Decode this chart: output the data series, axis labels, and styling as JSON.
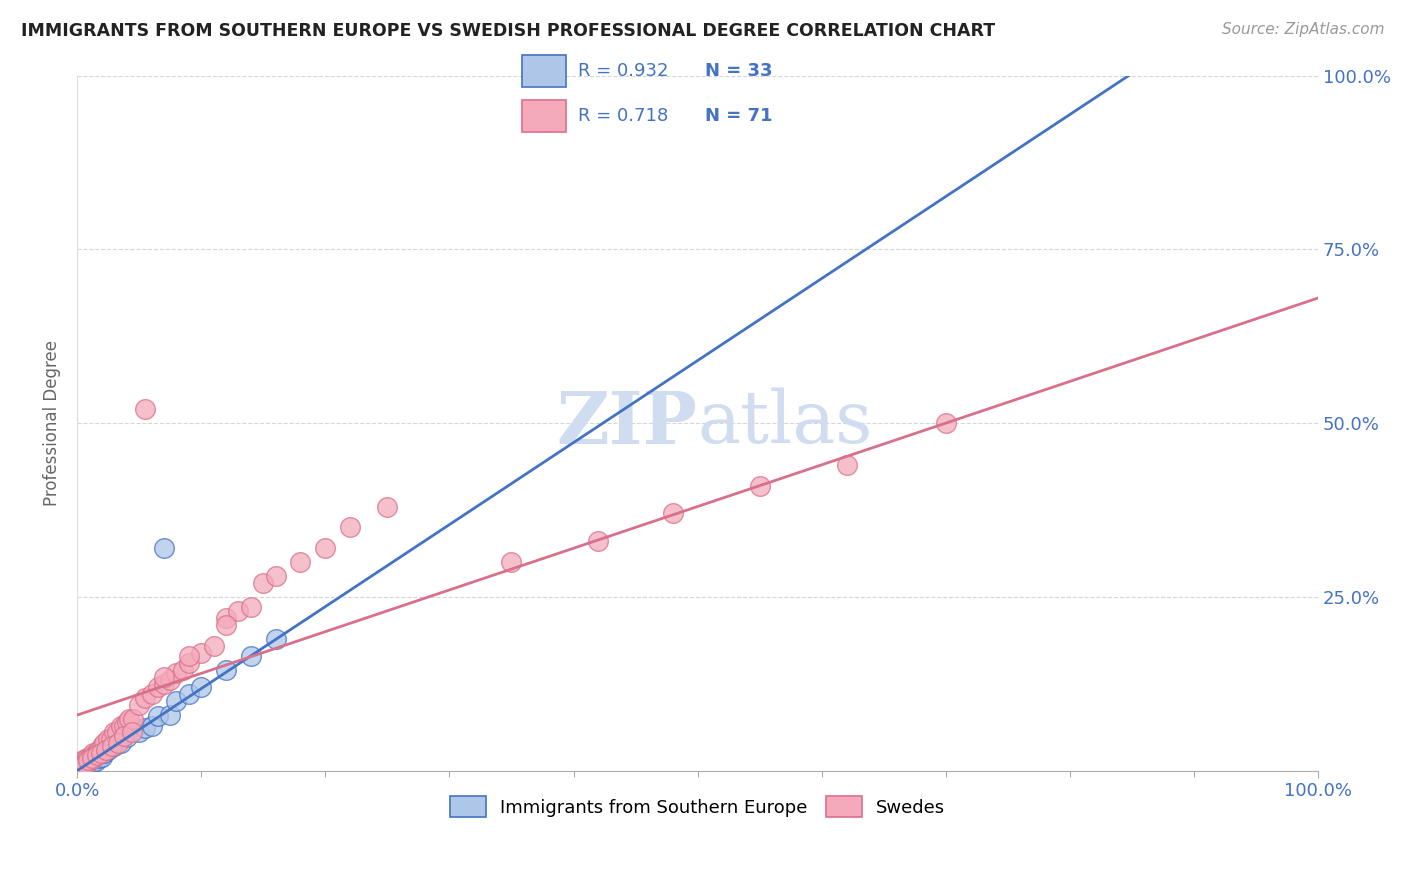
{
  "title": "IMMIGRANTS FROM SOUTHERN EUROPE VS SWEDISH PROFESSIONAL DEGREE CORRELATION CHART",
  "source": "Source: ZipAtlas.com",
  "ylabel": "Professional Degree",
  "blue_label": "Immigrants from Southern Europe",
  "pink_label": "Swedes",
  "blue_R": "0.932",
  "blue_N": "33",
  "pink_R": "0.718",
  "pink_N": "71",
  "blue_color": "#AEC6E8",
  "pink_color": "#F4AABB",
  "blue_line_color": "#4472C4",
  "pink_line_color": "#D9708A",
  "watermark_color": "#D0DCF0",
  "title_color": "#222222",
  "axis_color": "#4472C4",
  "grid_color": "#CCCCCC",
  "blue_line_slope": 1.18,
  "blue_line_intercept": 0.0,
  "pink_line_slope": 0.6,
  "pink_line_intercept": 0.08,
  "blue_x": [
    0.002,
    0.004,
    0.005,
    0.006,
    0.007,
    0.008,
    0.009,
    0.01,
    0.01,
    0.012,
    0.013,
    0.015,
    0.015,
    0.018,
    0.02,
    0.02,
    0.022,
    0.025,
    0.03,
    0.035,
    0.04,
    0.05,
    0.055,
    0.06,
    0.065,
    0.07,
    0.075,
    0.08,
    0.09,
    0.1,
    0.12,
    0.14,
    0.16
  ],
  "blue_y": [
    0.005,
    0.008,
    0.004,
    0.01,
    0.008,
    0.012,
    0.01,
    0.015,
    0.008,
    0.015,
    0.012,
    0.018,
    0.014,
    0.018,
    0.028,
    0.02,
    0.025,
    0.03,
    0.035,
    0.04,
    0.048,
    0.055,
    0.062,
    0.065,
    0.078,
    0.32,
    0.08,
    0.1,
    0.11,
    0.12,
    0.145,
    0.165,
    0.19
  ],
  "pink_x": [
    0.001,
    0.002,
    0.003,
    0.004,
    0.005,
    0.005,
    0.006,
    0.007,
    0.008,
    0.009,
    0.01,
    0.01,
    0.011,
    0.012,
    0.013,
    0.014,
    0.015,
    0.016,
    0.018,
    0.02,
    0.022,
    0.025,
    0.027,
    0.03,
    0.032,
    0.035,
    0.038,
    0.04,
    0.042,
    0.045,
    0.05,
    0.055,
    0.06,
    0.065,
    0.07,
    0.075,
    0.08,
    0.085,
    0.09,
    0.1,
    0.11,
    0.12,
    0.13,
    0.14,
    0.15,
    0.16,
    0.18,
    0.2,
    0.22,
    0.25,
    0.003,
    0.006,
    0.009,
    0.012,
    0.016,
    0.019,
    0.023,
    0.028,
    0.033,
    0.038,
    0.044,
    0.055,
    0.07,
    0.09,
    0.12,
    0.35,
    0.42,
    0.48,
    0.55,
    0.62,
    0.7
  ],
  "pink_y": [
    0.005,
    0.008,
    0.01,
    0.012,
    0.015,
    0.01,
    0.012,
    0.016,
    0.018,
    0.012,
    0.02,
    0.015,
    0.02,
    0.022,
    0.025,
    0.02,
    0.025,
    0.025,
    0.03,
    0.035,
    0.04,
    0.045,
    0.045,
    0.055,
    0.055,
    0.065,
    0.065,
    0.07,
    0.075,
    0.075,
    0.095,
    0.105,
    0.11,
    0.12,
    0.125,
    0.13,
    0.14,
    0.145,
    0.155,
    0.17,
    0.18,
    0.22,
    0.23,
    0.235,
    0.27,
    0.28,
    0.3,
    0.32,
    0.35,
    0.38,
    0.006,
    0.01,
    0.015,
    0.018,
    0.022,
    0.025,
    0.03,
    0.035,
    0.04,
    0.05,
    0.055,
    0.52,
    0.135,
    0.165,
    0.21,
    0.3,
    0.33,
    0.37,
    0.41,
    0.44,
    0.5
  ]
}
